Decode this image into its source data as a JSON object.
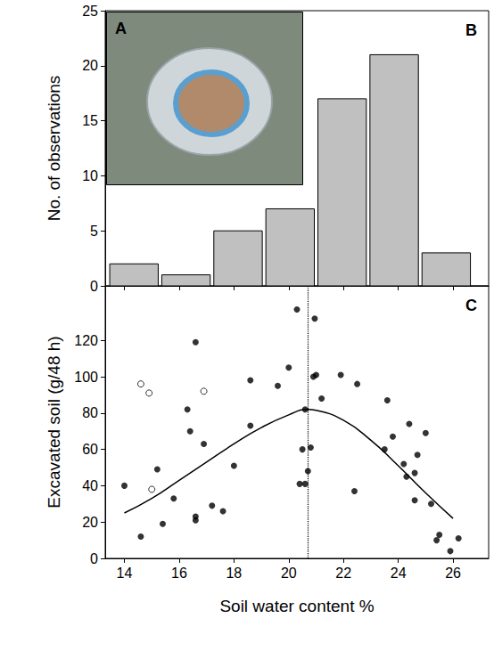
{
  "chart_data": [
    {
      "type": "histogram",
      "panel": "B",
      "bins": [
        13.4,
        15.3,
        17.2,
        19.1,
        21.0,
        22.9,
        24.8,
        26.7
      ],
      "values": [
        2,
        1,
        5,
        7,
        17,
        21,
        3
      ],
      "color": "#c0c0c0",
      "ylabel": "No. of observations",
      "xlim": [
        13.3,
        27.3
      ],
      "xticks": [
        14,
        16,
        18,
        20,
        22,
        24,
        26
      ],
      "ylim": [
        0,
        25
      ],
      "yticks": [
        0,
        5,
        10,
        15,
        20,
        25
      ],
      "tick_labels": "y",
      "grid": false
    },
    {
      "type": "scatter",
      "panel": "C",
      "xlabel": "Soil water content %",
      "ylabel": "Excavated soil (g/48 h)",
      "xlim": [
        13.3,
        27.3
      ],
      "xticks": [
        14,
        16,
        18,
        20,
        22,
        24,
        26
      ],
      "ylim": [
        0,
        150
      ],
      "yticks": [
        0,
        20,
        40,
        60,
        80,
        100,
        120
      ],
      "grid": false,
      "series": [
        {
          "type": "scatter",
          "marker": "filled",
          "color": "#000000",
          "x": [
            14.0,
            14.6,
            15.2,
            15.4,
            15.8,
            16.3,
            16.4,
            16.6,
            16.6,
            16.6,
            16.9,
            17.2,
            17.6,
            18.0,
            18.6,
            18.6,
            19.6,
            20.0,
            20.3,
            20.4,
            20.5,
            20.6,
            20.6,
            20.7,
            20.8,
            20.9,
            20.95,
            21.0,
            21.2,
            21.9,
            22.4,
            22.5,
            23.6,
            23.8,
            23.5,
            24.2,
            24.3,
            24.4,
            24.6,
            24.6,
            24.7,
            25.0,
            25.2,
            25.4,
            25.5,
            25.9,
            26.2
          ],
          "values": [
            40,
            12,
            49,
            19,
            33,
            82,
            70,
            119,
            23,
            21,
            63,
            29,
            26,
            51,
            98,
            73,
            95,
            105,
            137,
            41,
            60,
            41,
            82,
            48,
            61,
            100,
            132,
            101,
            88,
            101,
            37,
            96,
            87,
            67,
            60,
            52,
            45,
            74,
            47,
            32,
            57,
            69,
            30,
            10,
            13,
            4,
            11
          ]
        },
        {
          "type": "scatter",
          "marker": "open",
          "color": "#000000",
          "x": [
            14.6,
            14.9,
            15.0,
            16.9
          ],
          "values": [
            96,
            91,
            38,
            92
          ]
        },
        {
          "type": "line",
          "line_style": "solid",
          "color": "#000000",
          "x": [
            14,
            15,
            16,
            17,
            18,
            19,
            20,
            20.7,
            21,
            22,
            23,
            24,
            25,
            26
          ],
          "values": [
            25,
            33,
            43,
            53,
            63,
            72,
            79,
            82,
            81.5,
            76,
            65,
            51,
            36,
            22
          ]
        }
      ],
      "vline": {
        "x": 20.7,
        "line_style": "dotted"
      }
    }
  ],
  "inset": {
    "label": "A"
  }
}
